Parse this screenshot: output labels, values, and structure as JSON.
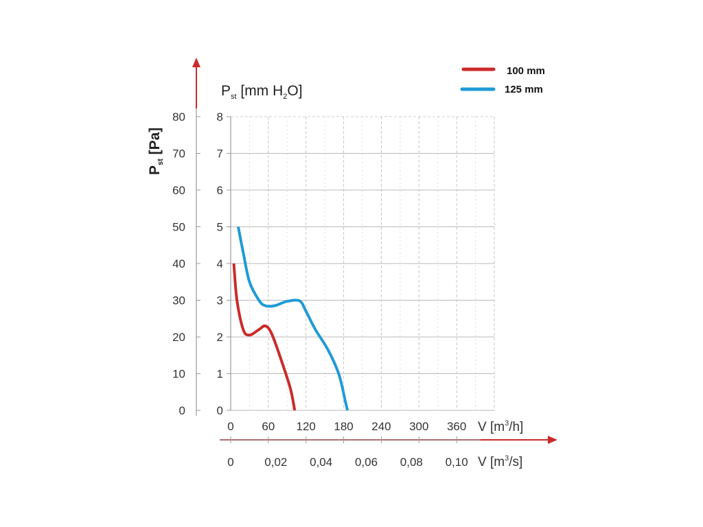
{
  "chart_data": {
    "type": "line",
    "legend": {
      "placement": "top-right",
      "entries": [
        {
          "label": "100 mm",
          "color": "#cc2a2a"
        },
        {
          "label": "125 mm",
          "color": "#1f9ad6"
        }
      ]
    },
    "y_left": {
      "label_main": "P",
      "label_sub": "st",
      "label_rest": " [Pa]",
      "ticks": [
        "0",
        "10",
        "20",
        "30",
        "40",
        "50",
        "60",
        "70",
        "80"
      ],
      "range": [
        0,
        80
      ]
    },
    "y_inner": {
      "label_main": "P",
      "label_sub": "st",
      "label_mid": " [mm H",
      "label_sub2": "2",
      "label_rest": "O]",
      "ticks": [
        "0",
        "1",
        "2",
        "3",
        "4",
        "5",
        "6",
        "7",
        "8"
      ],
      "range": [
        0,
        8
      ]
    },
    "x_primary": {
      "label_prefix": "V [m",
      "label_sup": "3",
      "label_suffix": "/h]",
      "ticks": [
        "0",
        "60",
        "120",
        "180",
        "240",
        "300",
        "360"
      ],
      "range": [
        0,
        420
      ]
    },
    "x_secondary": {
      "label_prefix": "V [m",
      "label_sup": "3",
      "label_suffix": "/s]",
      "ticks": [
        "0",
        "0,02",
        "0,04",
        "0,06",
        "0,08",
        "0,10"
      ],
      "tick_values": [
        0,
        0.02,
        0.04,
        0.06,
        0.08,
        0.1
      ]
    },
    "grid": true,
    "series": [
      {
        "name": "100 mm",
        "color": "#cc2a2a",
        "points": [
          [
            5,
            4.0
          ],
          [
            10,
            3.0
          ],
          [
            20,
            2.2
          ],
          [
            30,
            2.05
          ],
          [
            45,
            2.2
          ],
          [
            55,
            2.3
          ],
          [
            65,
            2.1
          ],
          [
            80,
            1.4
          ],
          [
            95,
            0.6
          ],
          [
            102,
            0.0
          ]
        ]
      },
      {
        "name": "125 mm",
        "color": "#1f9ad6",
        "points": [
          [
            12,
            5.0
          ],
          [
            20,
            4.3
          ],
          [
            30,
            3.5
          ],
          [
            45,
            3.0
          ],
          [
            55,
            2.85
          ],
          [
            70,
            2.85
          ],
          [
            90,
            2.97
          ],
          [
            110,
            2.98
          ],
          [
            120,
            2.7
          ],
          [
            135,
            2.2
          ],
          [
            155,
            1.65
          ],
          [
            172,
            1.0
          ],
          [
            182,
            0.3
          ],
          [
            186,
            0.0
          ]
        ]
      }
    ]
  }
}
